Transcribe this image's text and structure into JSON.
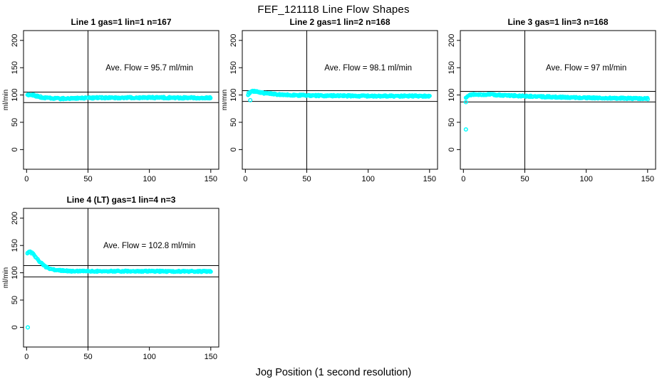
{
  "figure": {
    "title": "FEF_121118  Line Flow Shapes",
    "x_axis_label": "Jog Position (1 second resolution)",
    "y_axis_label": "ml/min",
    "point_color": "#00ffff",
    "line_color": "#000000",
    "background": "#ffffff"
  },
  "chart_data": [
    {
      "type": "scatter",
      "title": "Line 1 gas=1 lin=1 n=167",
      "annotation": "Ave. Flow =  95.7  ml/min",
      "ave_flow": 95.7,
      "n": 167,
      "ylabel": "ml/min",
      "xlim": [
        -2.5,
        156.5
      ],
      "ylim": [
        -36,
        218
      ],
      "xticks": [
        0,
        50,
        100,
        150
      ],
      "yticks": [
        0,
        50,
        100,
        150,
        200
      ],
      "vline_x": 50,
      "hlines": [
        105.3,
        86.1
      ],
      "annotation_at": [
        100,
        150
      ],
      "spread": 1.5,
      "curve": [
        [
          1,
          99.8
        ],
        [
          2,
          100.4
        ],
        [
          3,
          100.9
        ],
        [
          4,
          100.6
        ],
        [
          5,
          100
        ],
        [
          6,
          99.2
        ],
        [
          8,
          97.8
        ],
        [
          10,
          96.7
        ],
        [
          13,
          95.4
        ],
        [
          16,
          94.5
        ],
        [
          20,
          93.8
        ],
        [
          25,
          93.4
        ],
        [
          30,
          93.5
        ],
        [
          40,
          94.2
        ],
        [
          55,
          94.8
        ],
        [
          75,
          95.1
        ],
        [
          100,
          95.2
        ],
        [
          125,
          95
        ],
        [
          150,
          94.9
        ]
      ],
      "outliers": []
    },
    {
      "type": "scatter",
      "title": "Line 2 gas=1 lin=2 n=168",
      "annotation": "Ave. Flow =  98.1  ml/min",
      "ave_flow": 98.1,
      "n": 168,
      "ylabel": "ml/min",
      "xlim": [
        -2.5,
        156.5
      ],
      "ylim": [
        -36,
        218
      ],
      "xticks": [
        0,
        50,
        100,
        150
      ],
      "yticks": [
        0,
        50,
        100,
        150,
        200
      ],
      "vline_x": 50,
      "hlines": [
        107.9,
        88.3
      ],
      "annotation_at": [
        100,
        150
      ],
      "spread": 1.4,
      "curve": [
        [
          2,
          100
        ],
        [
          3,
          103.5
        ],
        [
          4,
          105.8
        ],
        [
          5,
          107
        ],
        [
          6,
          107.2
        ],
        [
          8,
          106.4
        ],
        [
          10,
          105.5
        ],
        [
          13,
          104.3
        ],
        [
          16,
          103.3
        ],
        [
          20,
          102.3
        ],
        [
          25,
          101.3
        ],
        [
          30,
          100.6
        ],
        [
          40,
          99.7
        ],
        [
          55,
          99
        ],
        [
          75,
          98.5
        ],
        [
          100,
          98.2
        ],
        [
          125,
          98.1
        ],
        [
          150,
          98
        ]
      ],
      "outliers": [
        [
          4,
          90.5
        ]
      ]
    },
    {
      "type": "scatter",
      "title": "Line 3 gas=1 lin=3 n=168",
      "annotation": "Ave. Flow =  97  ml/min",
      "ave_flow": 97,
      "n": 168,
      "ylabel": "ml/min",
      "xlim": [
        -2.5,
        156.5
      ],
      "ylim": [
        -36,
        218
      ],
      "xticks": [
        0,
        50,
        100,
        150
      ],
      "yticks": [
        0,
        50,
        100,
        150,
        200
      ],
      "vline_x": 50,
      "hlines": [
        106.7,
        87.3
      ],
      "annotation_at": [
        100,
        150
      ],
      "spread": 1.4,
      "curve": [
        [
          2,
          94.5
        ],
        [
          3,
          97.5
        ],
        [
          4,
          99
        ],
        [
          6,
          100.3
        ],
        [
          8,
          100.8
        ],
        [
          10,
          101
        ],
        [
          14,
          101
        ],
        [
          20,
          100.7
        ],
        [
          27,
          100.1
        ],
        [
          35,
          99.3
        ],
        [
          45,
          98.4
        ],
        [
          60,
          97.2
        ],
        [
          75,
          96.3
        ],
        [
          90,
          95.5
        ],
        [
          105,
          94.8
        ],
        [
          120,
          94.2
        ],
        [
          135,
          93.8
        ],
        [
          150,
          93.4
        ]
      ],
      "outliers": [
        [
          2,
          37
        ],
        [
          2,
          87
        ]
      ]
    },
    {
      "type": "scatter",
      "title": "Line 4 (LT) gas=1 lin=4 n=3",
      "annotation": "Ave. Flow =  102.8  ml/min",
      "ave_flow": 102.8,
      "n": 3,
      "ylabel": "ml/min",
      "xlim": [
        -2.5,
        156.5
      ],
      "ylim": [
        -36,
        218
      ],
      "xticks": [
        0,
        50,
        100,
        150
      ],
      "yticks": [
        0,
        50,
        100,
        150,
        200
      ],
      "vline_x": 50,
      "hlines": [
        113.1,
        92.5
      ],
      "annotation_at": [
        100,
        150
      ],
      "spread": 1.2,
      "curve": [
        [
          1,
          136.5
        ],
        [
          2,
          138.5
        ],
        [
          3,
          138
        ],
        [
          4,
          136.5
        ],
        [
          5,
          134.5
        ],
        [
          6,
          132
        ],
        [
          7,
          129.5
        ],
        [
          8,
          127
        ],
        [
          9,
          124.5
        ],
        [
          10,
          122
        ],
        [
          12,
          117.5
        ],
        [
          14,
          113.8
        ],
        [
          16,
          110.8
        ],
        [
          18,
          108.5
        ],
        [
          20,
          107
        ],
        [
          23,
          105.4
        ],
        [
          26,
          104.4
        ],
        [
          30,
          103.7
        ],
        [
          36,
          103.2
        ],
        [
          45,
          103
        ],
        [
          60,
          102.9
        ],
        [
          80,
          102.9
        ],
        [
          100,
          102.9
        ],
        [
          120,
          102.6
        ],
        [
          150,
          102.5
        ]
      ],
      "outliers": [
        [
          1,
          0
        ]
      ]
    }
  ]
}
